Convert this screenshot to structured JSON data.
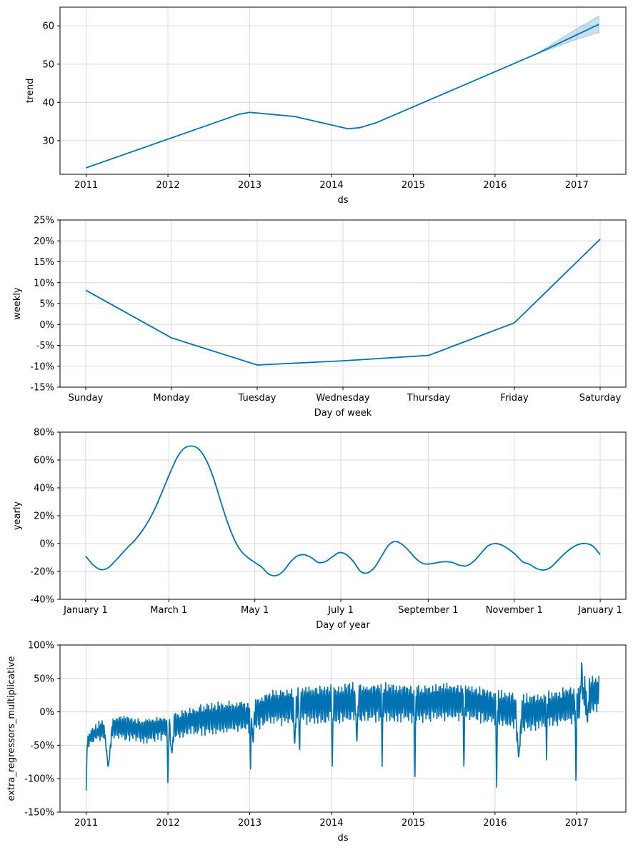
{
  "colors": {
    "line": "#0072b2",
    "band": "#0072b2",
    "grid": "#d9d9d9",
    "axis": "#000000"
  },
  "chart_data": [
    {
      "type": "line",
      "id": "trend",
      "xlabel": "ds",
      "ylabel": "trend",
      "x_ticks": [
        {
          "v": 2011,
          "label": "2011"
        },
        {
          "v": 2012,
          "label": "2012"
        },
        {
          "v": 2013,
          "label": "2013"
        },
        {
          "v": 2014,
          "label": "2014"
        },
        {
          "v": 2015,
          "label": "2015"
        },
        {
          "v": 2016,
          "label": "2016"
        },
        {
          "v": 2017,
          "label": "2017"
        }
      ],
      "y_ticks": [
        {
          "v": 30,
          "label": "30"
        },
        {
          "v": 40,
          "label": "40"
        },
        {
          "v": 50,
          "label": "50"
        },
        {
          "v": 60,
          "label": "60"
        }
      ],
      "xlim": [
        2010.68,
        2017.6
      ],
      "ylim": [
        21.2,
        64.9
      ],
      "x": [
        2011.0,
        2012.87,
        2013.0,
        2013.55,
        2014.2,
        2014.35,
        2014.55,
        2016.5,
        2017.27
      ],
      "y": [
        22.9,
        36.9,
        37.4,
        36.3,
        33.1,
        33.4,
        34.7,
        52.6,
        60.4
      ],
      "band": {
        "x": [
          2016.5,
          2016.75,
          2017.0,
          2017.27
        ],
        "lower": [
          52.6,
          54.5,
          56.5,
          58.3
        ],
        "upper": [
          52.6,
          56.0,
          59.2,
          62.6
        ]
      }
    },
    {
      "type": "line",
      "id": "weekly",
      "xlabel": "Day of week",
      "ylabel": "weekly",
      "x_ticks": [
        {
          "v": 0,
          "label": "Sunday"
        },
        {
          "v": 1,
          "label": "Monday"
        },
        {
          "v": 2,
          "label": "Tuesday"
        },
        {
          "v": 3,
          "label": "Wednesday"
        },
        {
          "v": 4,
          "label": "Thursday"
        },
        {
          "v": 5,
          "label": "Friday"
        },
        {
          "v": 6,
          "label": "Saturday"
        }
      ],
      "y_ticks": [
        {
          "v": -15,
          "label": "-15%"
        },
        {
          "v": -10,
          "label": "-10%"
        },
        {
          "v": -5,
          "label": "-5%"
        },
        {
          "v": 0,
          "label": "0%"
        },
        {
          "v": 5,
          "label": "5%"
        },
        {
          "v": 10,
          "label": "10%"
        },
        {
          "v": 15,
          "label": "15%"
        },
        {
          "v": 20,
          "label": "20%"
        },
        {
          "v": 25,
          "label": "25%"
        }
      ],
      "xlim": [
        -0.3,
        6.3
      ],
      "ylim": [
        -15,
        25
      ],
      "x": [
        0,
        1,
        2,
        3,
        4,
        5,
        6
      ],
      "y": [
        8.2,
        -3.2,
        -9.7,
        -8.7,
        -7.4,
        0.4,
        20.4
      ]
    },
    {
      "type": "line",
      "id": "yearly",
      "xlabel": "Day of year",
      "ylabel": "yearly",
      "x_ticks": [
        {
          "v": 0,
          "label": "January 1"
        },
        {
          "v": 59,
          "label": "March 1"
        },
        {
          "v": 120,
          "label": "May 1"
        },
        {
          "v": 181,
          "label": "July 1"
        },
        {
          "v": 243,
          "label": "September 1"
        },
        {
          "v": 304,
          "label": "November 1"
        },
        {
          "v": 365,
          "label": "January 1"
        }
      ],
      "y_ticks": [
        {
          "v": -40,
          "label": "-40%"
        },
        {
          "v": -20,
          "label": "-20%"
        },
        {
          "v": 0,
          "label": "0%"
        },
        {
          "v": 20,
          "label": "20%"
        },
        {
          "v": 40,
          "label": "40%"
        },
        {
          "v": 60,
          "label": "60%"
        },
        {
          "v": 80,
          "label": "80%"
        }
      ],
      "xlim": [
        -18.2,
        383.2
      ],
      "ylim": [
        -40,
        80
      ],
      "x": [
        0,
        5,
        10,
        15,
        20,
        25,
        30,
        35,
        40,
        45,
        50,
        55,
        60,
        65,
        70,
        75,
        80,
        85,
        90,
        95,
        100,
        105,
        110,
        115,
        120,
        125,
        130,
        135,
        140,
        145,
        150,
        155,
        160,
        165,
        170,
        175,
        180,
        185,
        190,
        195,
        200,
        205,
        210,
        215,
        220,
        225,
        230,
        235,
        240,
        245,
        250,
        255,
        260,
        265,
        270,
        275,
        280,
        285,
        290,
        295,
        300,
        305,
        310,
        315,
        320,
        325,
        330,
        335,
        340,
        345,
        350,
        355,
        360,
        365
      ],
      "y": [
        -9,
        -15,
        -18.5,
        -18,
        -13.5,
        -8,
        -2.5,
        2.5,
        9,
        17,
        27,
        39,
        51,
        62,
        68.5,
        70,
        68,
        61,
        49,
        33,
        17,
        4,
        -5,
        -10,
        -13.5,
        -17,
        -22,
        -23,
        -20,
        -13.5,
        -9,
        -8,
        -10,
        -13.5,
        -13,
        -9.5,
        -6.5,
        -8,
        -13,
        -20,
        -21,
        -17,
        -9,
        -1,
        1.5,
        -1,
        -6,
        -11.5,
        -14.5,
        -14.5,
        -13.5,
        -13,
        -13.5,
        -15.5,
        -16,
        -13,
        -7.5,
        -2,
        0,
        -1,
        -4,
        -8,
        -13,
        -15,
        -18,
        -19,
        -17,
        -12,
        -7,
        -3,
        -0.5,
        0,
        -2,
        -8
      ]
    },
    {
      "type": "line",
      "id": "extra_regressors_multiplicative",
      "xlabel": "ds",
      "ylabel": "extra_regressors_multiplicative",
      "x_ticks": [
        {
          "v": 2011,
          "label": "2011"
        },
        {
          "v": 2012,
          "label": "2012"
        },
        {
          "v": 2013,
          "label": "2013"
        },
        {
          "v": 2014,
          "label": "2014"
        },
        {
          "v": 2015,
          "label": "2015"
        },
        {
          "v": 2016,
          "label": "2016"
        },
        {
          "v": 2017,
          "label": "2017"
        }
      ],
      "y_ticks": [
        {
          "v": -150,
          "label": "-150%"
        },
        {
          "v": -100,
          "label": "-100%"
        },
        {
          "v": -50,
          "label": "-50%"
        },
        {
          "v": 0,
          "label": "0%"
        },
        {
          "v": 50,
          "label": "50%"
        },
        {
          "v": 100,
          "label": "100%"
        }
      ],
      "xlim": [
        2010.68,
        2017.6
      ],
      "ylim": [
        -150,
        100
      ],
      "x_start": 2011.0,
      "x_end": 2017.27,
      "baseline": [
        [
          2011.0,
          -52
        ],
        [
          2011.05,
          -38
        ],
        [
          2011.15,
          -28
        ],
        [
          2011.3,
          -22
        ],
        [
          2011.5,
          -22
        ],
        [
          2011.7,
          -26
        ],
        [
          2011.9,
          -22
        ],
        [
          2012.0,
          -22
        ],
        [
          2012.3,
          -12
        ],
        [
          2012.6,
          -6
        ],
        [
          2012.9,
          -4
        ],
        [
          2013.0,
          -4
        ],
        [
          2013.2,
          8
        ],
        [
          2013.5,
          12
        ],
        [
          2013.8,
          14
        ],
        [
          2014.0,
          14
        ],
        [
          2014.3,
          18
        ],
        [
          2014.6,
          18
        ],
        [
          2014.9,
          16
        ],
        [
          2015.0,
          14
        ],
        [
          2015.3,
          18
        ],
        [
          2015.6,
          18
        ],
        [
          2015.9,
          12
        ],
        [
          2016.0,
          10
        ],
        [
          2016.3,
          2
        ],
        [
          2016.6,
          4
        ],
        [
          2016.9,
          14
        ],
        [
          2017.0,
          12
        ],
        [
          2017.1,
          28
        ],
        [
          2017.27,
          30
        ]
      ],
      "amplitude": [
        [
          2011.0,
          12
        ],
        [
          2011.5,
          20
        ],
        [
          2012.0,
          20
        ],
        [
          2012.5,
          26
        ],
        [
          2013.0,
          28
        ],
        [
          2014.0,
          34
        ],
        [
          2015.0,
          32
        ],
        [
          2016.0,
          30
        ],
        [
          2016.5,
          32
        ],
        [
          2017.0,
          30
        ],
        [
          2017.27,
          34
        ]
      ],
      "spikes": [
        {
          "x": 2011.0,
          "y": -118,
          "w": 0.012
        },
        {
          "x": 2011.27,
          "y": -84,
          "w": 0.05
        },
        {
          "x": 2012.0,
          "y": -116,
          "w": 0.012
        },
        {
          "x": 2012.04,
          "y": -48,
          "w": 0.02
        },
        {
          "x": 2012.05,
          "y": -62,
          "w": 0.025
        },
        {
          "x": 2013.01,
          "y": -90,
          "w": 0.012
        },
        {
          "x": 2013.04,
          "y": -48,
          "w": 0.02
        },
        {
          "x": 2013.55,
          "y": -52,
          "w": 0.02
        },
        {
          "x": 2013.61,
          "y": -74,
          "w": 0.01
        },
        {
          "x": 2014.01,
          "y": -85,
          "w": 0.012
        },
        {
          "x": 2014.31,
          "y": -48,
          "w": 0.02
        },
        {
          "x": 2014.62,
          "y": -87,
          "w": 0.01
        },
        {
          "x": 2015.02,
          "y": -108,
          "w": 0.012
        },
        {
          "x": 2015.62,
          "y": -103,
          "w": 0.01
        },
        {
          "x": 2016.02,
          "y": -116,
          "w": 0.012
        },
        {
          "x": 2016.29,
          "y": -70,
          "w": 0.04
        },
        {
          "x": 2016.63,
          "y": -72,
          "w": 0.01
        },
        {
          "x": 2016.99,
          "y": -114,
          "w": 0.012
        },
        {
          "x": 2017.06,
          "y": 78,
          "w": 0.015
        },
        {
          "x": 2017.13,
          "y": -18,
          "w": 0.02
        }
      ]
    }
  ]
}
